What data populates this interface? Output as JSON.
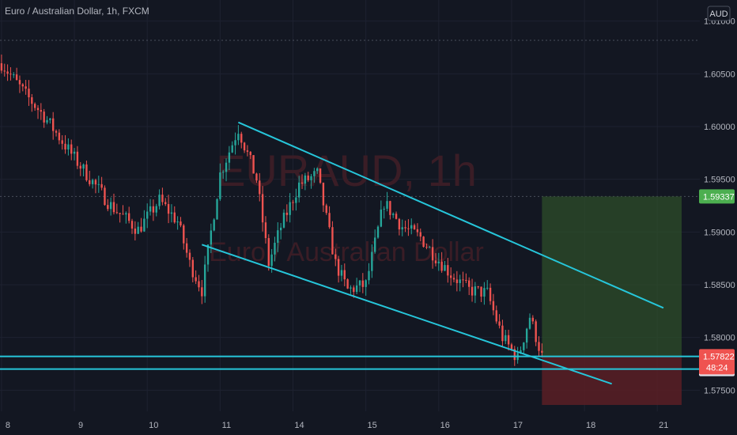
{
  "header": {
    "title": "Euro / Australian Dollar, 1h, FXCM",
    "currency_button": "AUD"
  },
  "watermark": {
    "symbol": "EURAUD, 1h",
    "description": "Euro / Australian Dollar"
  },
  "colors": {
    "background": "#131722",
    "grid": "#1e2230",
    "up": "#26a69a",
    "down": "#ef5350",
    "trendline": "#26c6da",
    "target_zone": "#2e4d2a",
    "stop_zone": "#5a1e25",
    "axis_text": "#b2b5be",
    "last_price_bg": "#ef5350",
    "target_label_bg": "#4caf50"
  },
  "chart_data": {
    "type": "candlestick",
    "title": "Euro / Australian Dollar, 1h, FXCM",
    "ylim": [
      1.573,
      1.612
    ],
    "y_ticks": [
      "1.61000",
      "1.60500",
      "1.60000",
      "1.59500",
      "1.59000",
      "1.58500",
      "1.58000",
      "1.57500"
    ],
    "x_ticks": [
      "8",
      "9",
      "10",
      "11",
      "14",
      "15",
      "16",
      "17",
      "18",
      "21"
    ],
    "x_tick_index": [
      0,
      24,
      48,
      72,
      96,
      120,
      144,
      168,
      192,
      216
    ],
    "grid": true,
    "anchors": [
      [
        0,
        1.606
      ],
      [
        8,
        1.603
      ],
      [
        14,
        1.601
      ],
      [
        24,
        1.597
      ],
      [
        36,
        1.5925
      ],
      [
        45,
        1.5902
      ],
      [
        52,
        1.593
      ],
      [
        58,
        1.591
      ],
      [
        62,
        1.587
      ],
      [
        66,
        1.5845
      ],
      [
        72,
        1.5955
      ],
      [
        78,
        1.5998
      ],
      [
        84,
        1.595
      ],
      [
        88,
        1.587
      ],
      [
        92,
        1.5905
      ],
      [
        98,
        1.5945
      ],
      [
        104,
        1.5955
      ],
      [
        110,
        1.587
      ],
      [
        114,
        1.5845
      ],
      [
        120,
        1.585
      ],
      [
        126,
        1.5928
      ],
      [
        132,
        1.5905
      ],
      [
        138,
        1.5895
      ],
      [
        142,
        1.588
      ],
      [
        148,
        1.586
      ],
      [
        154,
        1.5845
      ],
      [
        160,
        1.5842
      ],
      [
        165,
        1.58
      ],
      [
        170,
        1.578
      ],
      [
        174,
        1.582
      ],
      [
        178,
        1.5782
      ]
    ],
    "trendlines": [
      {
        "name": "upper-channel",
        "from": [
          78,
          1.6004
        ],
        "to": [
          218,
          1.5828
        ]
      },
      {
        "name": "lower-channel",
        "from": [
          66,
          1.5888
        ],
        "to": [
          201,
          1.5756
        ]
      },
      {
        "name": "support-top",
        "y": 1.5782
      },
      {
        "name": "support-bottom",
        "y": 1.577
      }
    ],
    "position": {
      "entry": 1.57822,
      "target": 1.59337,
      "stop": 1.5736,
      "start_index": 178,
      "end_index": 224
    },
    "price_labels": {
      "target": "1.59337",
      "last": "1.57822",
      "countdown": "48:24",
      "support": "1.57700"
    }
  }
}
